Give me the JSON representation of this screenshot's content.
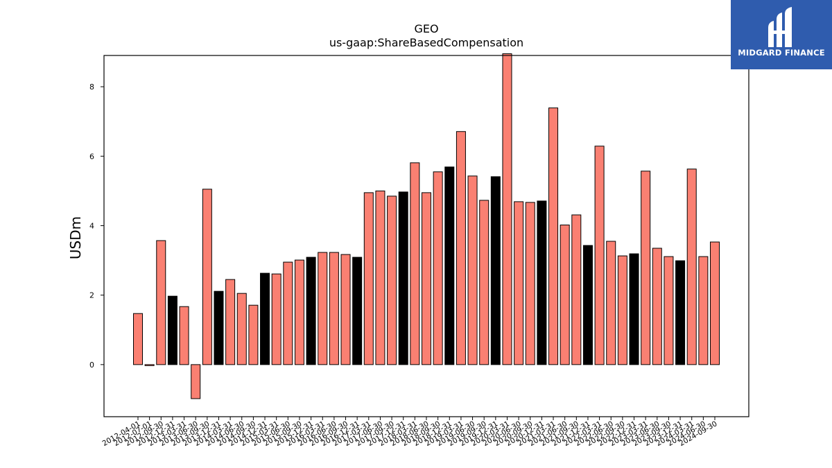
{
  "chart_data": {
    "type": "bar",
    "title": "GEO",
    "subtitle": "us-gaap:ShareBasedCompensation",
    "xlabel": "",
    "ylabel": "USDm",
    "ylim": [
      -1.5,
      8.9
    ],
    "yticks": [
      0,
      2,
      4,
      6,
      8
    ],
    "grid": false,
    "legend": "none",
    "colors": {
      "primary": "#fa8072",
      "annual": "#000000",
      "edge": "#000000"
    },
    "categories": [
      "2012-04-01",
      "2012-07-01",
      "2012-09-30",
      "2012-12-31",
      "2013-03-31",
      "2013-06-30",
      "2013-09-30",
      "2013-12-31",
      "2014-03-31",
      "2014-06-30",
      "2014-09-30",
      "2014-12-31",
      "2015-03-31",
      "2015-06-30",
      "2015-09-30",
      "2015-12-31",
      "2016-03-31",
      "2016-06-30",
      "2016-09-30",
      "2016-12-31",
      "2017-03-31",
      "2017-06-30",
      "2017-09-30",
      "2017-12-31",
      "2018-03-31",
      "2018-06-30",
      "2018-09-30",
      "2018-12-31",
      "2019-03-31",
      "2019-06-30",
      "2019-09-30",
      "2019-12-31",
      "2020-03-31",
      "2020-06-30",
      "2020-09-30",
      "2020-12-31",
      "2021-03-31",
      "2021-06-30",
      "2021-09-30",
      "2021-12-31",
      "2022-03-31",
      "2022-06-30",
      "2022-09-30",
      "2022-12-31",
      "2023-03-31",
      "2023-06-30",
      "2023-09-30",
      "2023-12-31",
      "2024-03-31",
      "2024-06-30",
      "2024-09-30"
    ],
    "series": [
      {
        "values": [
          1.47,
          -0.03,
          3.57,
          1.97,
          1.67,
          -0.98,
          5.05,
          2.11,
          2.45,
          2.05,
          1.71,
          2.63,
          2.61,
          2.95,
          3.01,
          3.09,
          3.23,
          3.23,
          3.17,
          3.09,
          4.95,
          5.0,
          4.85,
          4.97,
          5.81,
          4.95,
          5.55,
          5.69,
          6.71,
          5.43,
          4.73,
          5.41,
          8.95,
          4.69,
          4.67,
          4.71,
          7.39,
          4.02,
          4.31,
          3.43,
          6.29,
          3.55,
          3.13,
          3.19,
          5.57,
          3.35,
          3.11,
          2.99,
          5.63,
          3.11,
          3.53
        ],
        "colors": [
          "s",
          "s",
          "s",
          "b",
          "s",
          "s",
          "s",
          "b",
          "s",
          "s",
          "s",
          "b",
          "s",
          "s",
          "s",
          "b",
          "s",
          "s",
          "s",
          "b",
          "s",
          "s",
          "s",
          "b",
          "s",
          "s",
          "s",
          "b",
          "s",
          "s",
          "s",
          "b",
          "s",
          "s",
          "s",
          "b",
          "s",
          "s",
          "s",
          "b",
          "s",
          "s",
          "s",
          "b",
          "s",
          "s",
          "s",
          "b",
          "s",
          "s",
          "s"
        ]
      }
    ]
  },
  "logo": {
    "text": "MIDGARD FINANCE"
  }
}
